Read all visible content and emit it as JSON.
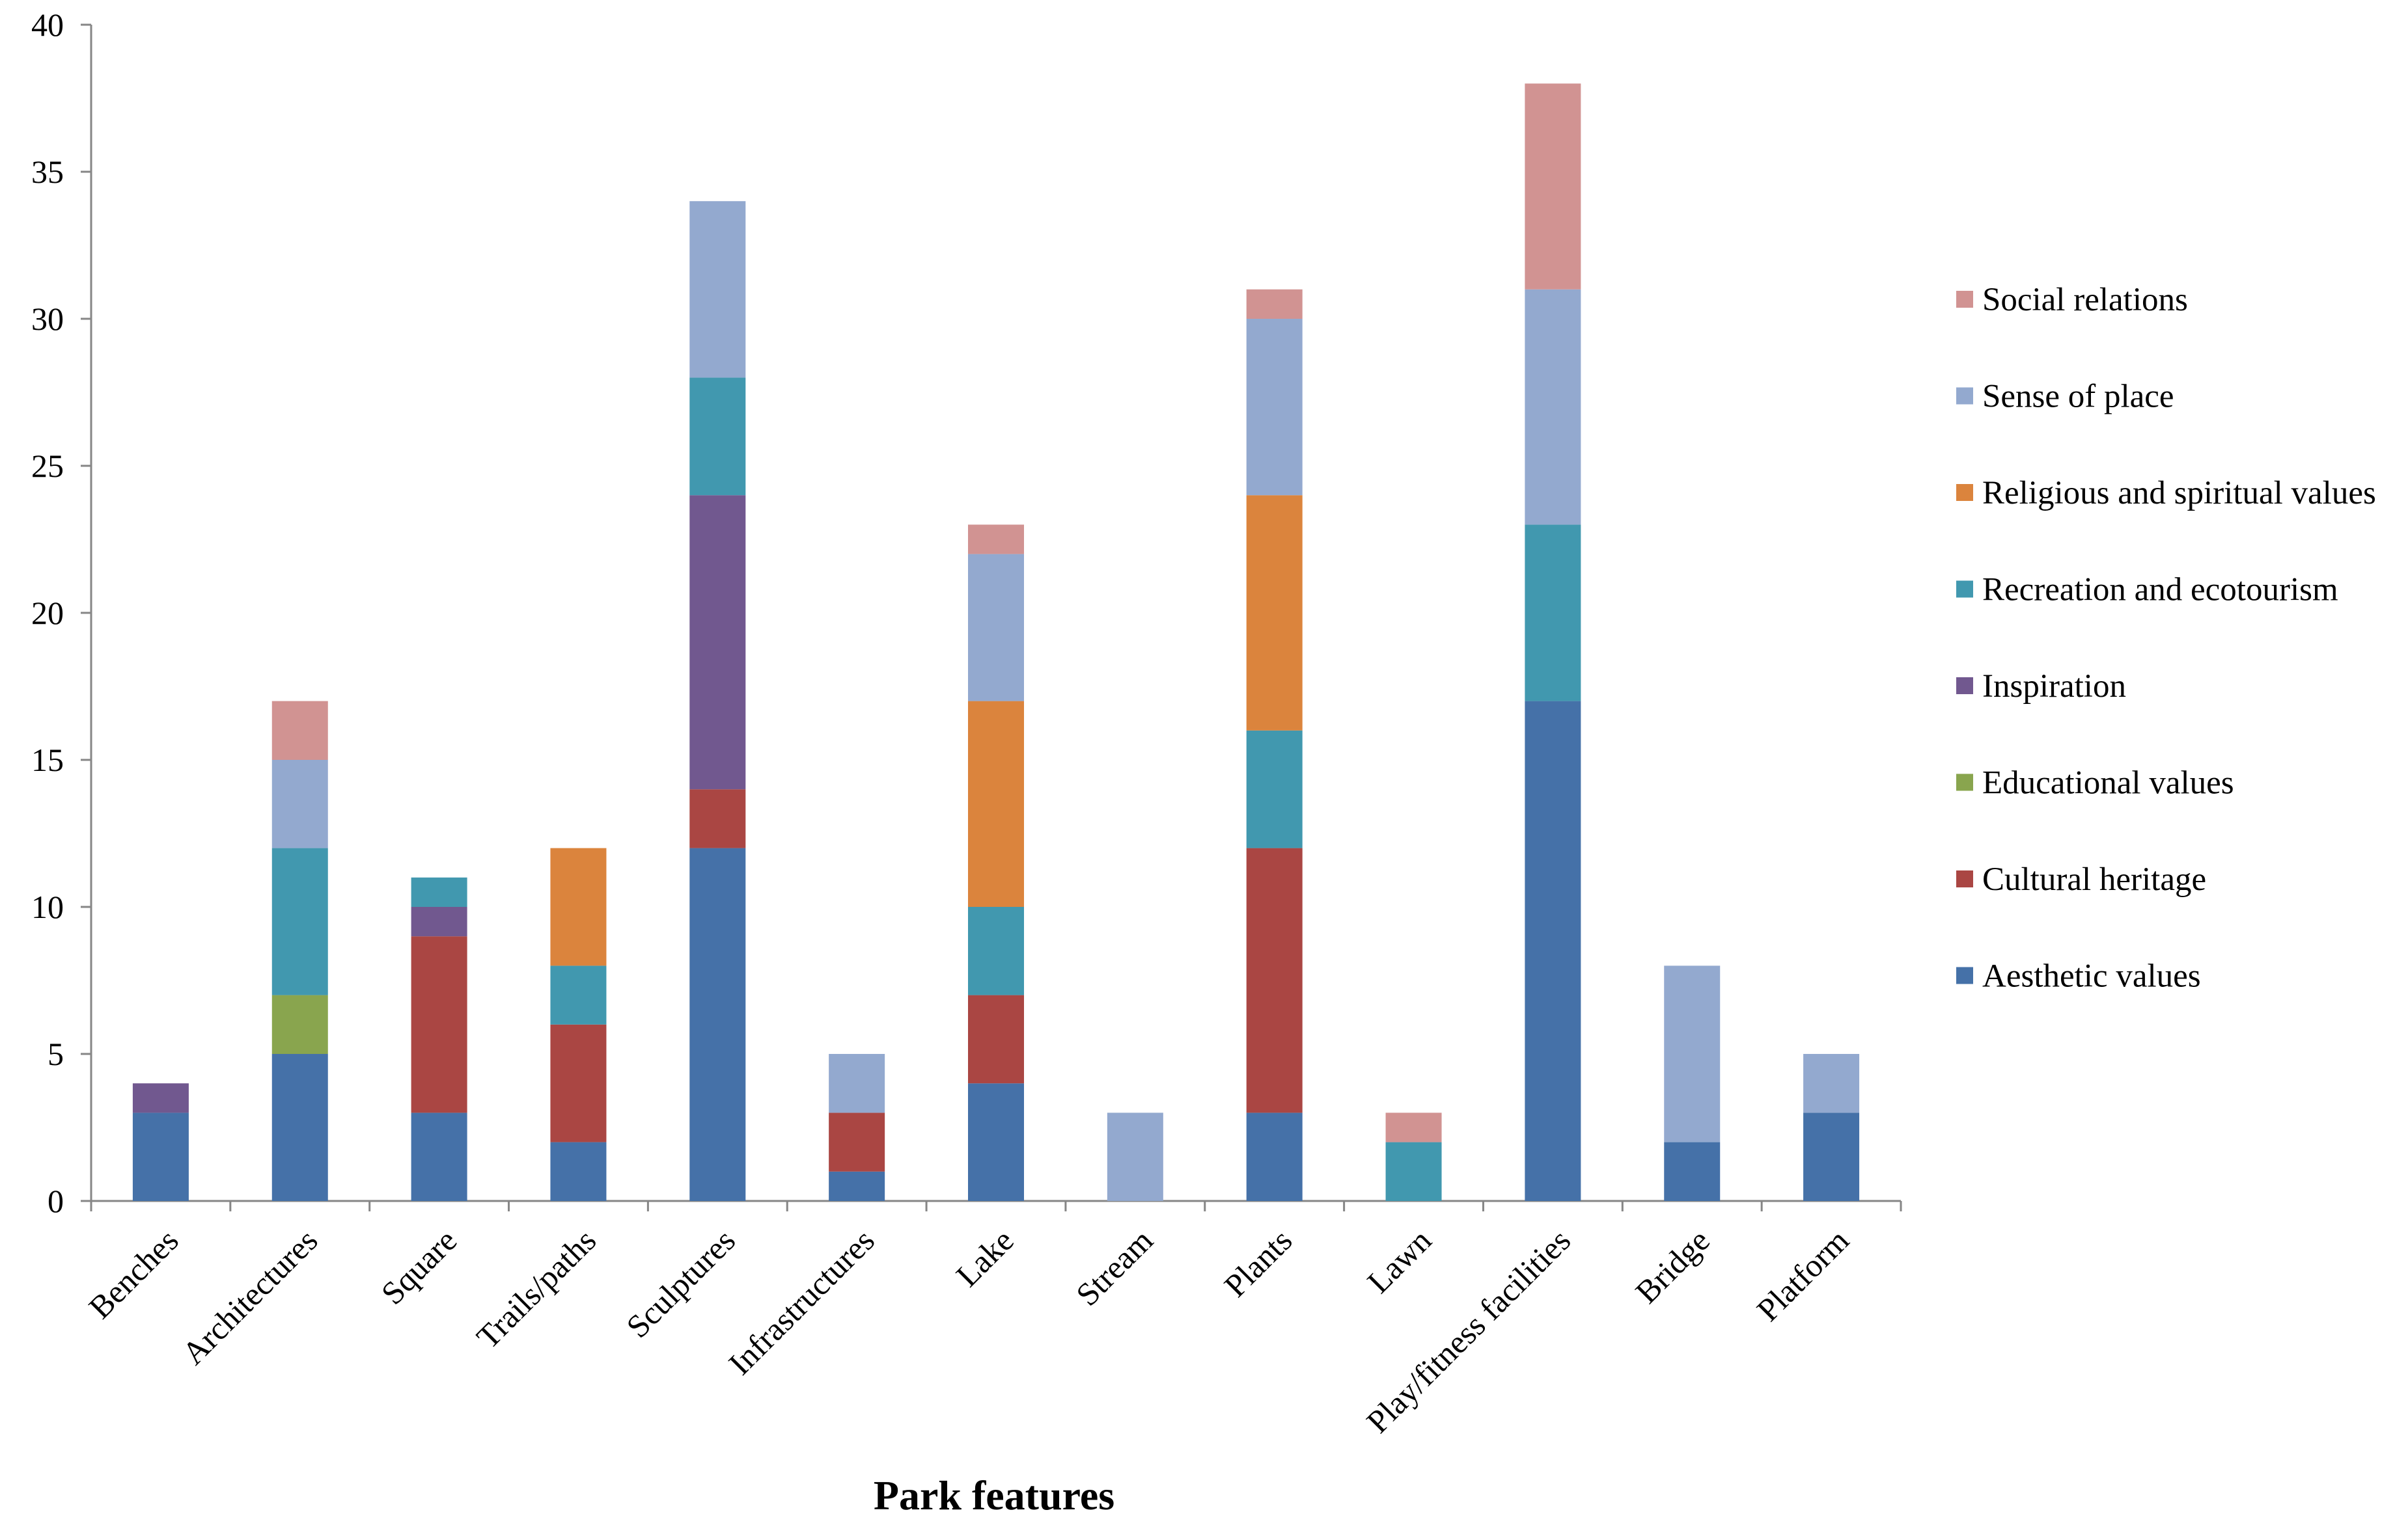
{
  "chart_data": {
    "type": "bar",
    "stacked": true,
    "title": "",
    "xlabel": "Park features",
    "ylabel": "",
    "ylim": [
      0,
      40
    ],
    "yticks": [
      0,
      5,
      10,
      15,
      20,
      25,
      30,
      35,
      40
    ],
    "grid": false,
    "legend_position": "right",
    "categories": [
      "Benches",
      "Architectures",
      "Square",
      "Trails/paths",
      "Sculptures",
      "Infrastructures",
      "Lake",
      "Stream",
      "Plants",
      "Lawn",
      "Play/fitness facilities",
      "Bridge",
      "Platform"
    ],
    "series": [
      {
        "name": "Aesthetic values",
        "color": "#4571A8",
        "values": [
          3,
          5,
          3,
          2,
          12,
          1,
          4,
          0,
          3,
          0,
          17,
          2,
          3
        ]
      },
      {
        "name": "Cultural heritage",
        "color": "#AA4643",
        "values": [
          0,
          0,
          6,
          4,
          2,
          2,
          3,
          0,
          9,
          0,
          0,
          0,
          0
        ]
      },
      {
        "name": "Educational values",
        "color": "#89A54E",
        "values": [
          0,
          2,
          0,
          0,
          0,
          0,
          0,
          0,
          0,
          0,
          0,
          0,
          0
        ]
      },
      {
        "name": "Inspiration",
        "color": "#71588F",
        "values": [
          1,
          0,
          1,
          0,
          10,
          0,
          0,
          0,
          0,
          0,
          0,
          0,
          0
        ]
      },
      {
        "name": "Recreation and ecotourism",
        "color": "#4198AF",
        "values": [
          0,
          5,
          1,
          2,
          4,
          0,
          3,
          0,
          4,
          2,
          6,
          0,
          0
        ]
      },
      {
        "name": "Religious and spiritual values",
        "color": "#DB843D",
        "values": [
          0,
          0,
          0,
          4,
          0,
          0,
          7,
          0,
          8,
          0,
          0,
          0,
          0
        ]
      },
      {
        "name": "Sense of place",
        "color": "#93A9CF",
        "values": [
          0,
          3,
          0,
          0,
          6,
          2,
          5,
          3,
          6,
          0,
          8,
          6,
          2
        ]
      },
      {
        "name": "Social relations",
        "color": "#D19392",
        "values": [
          0,
          2,
          0,
          0,
          0,
          0,
          1,
          0,
          1,
          1,
          7,
          0,
          0
        ]
      }
    ]
  }
}
